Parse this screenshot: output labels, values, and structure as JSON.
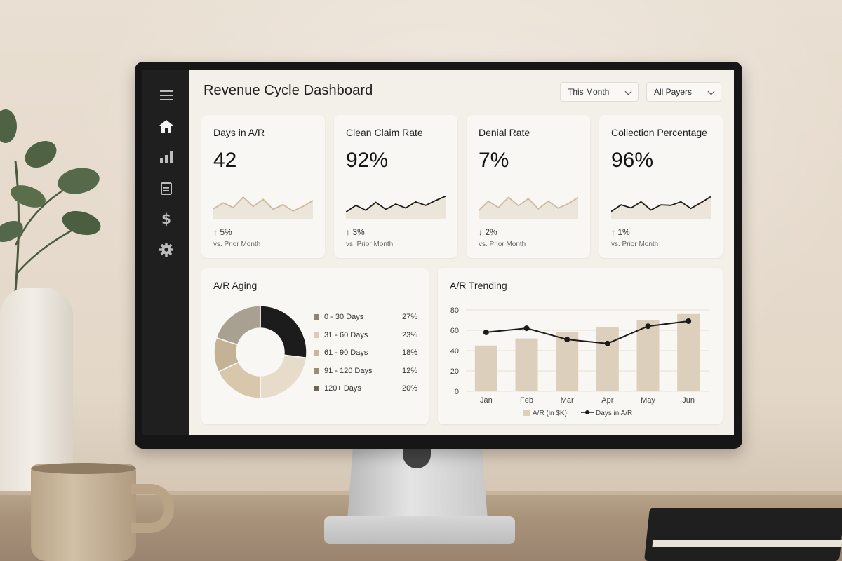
{
  "app": {
    "title": "Revenue Cycle Dashboard"
  },
  "filters": {
    "period": "This Month",
    "payers": "All Payers"
  },
  "sidebar": {
    "items": [
      {
        "icon": "menu-icon"
      },
      {
        "icon": "home-icon",
        "active": true
      },
      {
        "icon": "bar-chart-icon"
      },
      {
        "icon": "clipboard-icon"
      },
      {
        "icon": "dollar-icon"
      },
      {
        "icon": "gear-icon"
      }
    ]
  },
  "kpis": [
    {
      "label": "Days in A/R",
      "value": "42",
      "change": "5%",
      "direction": "up",
      "subtext": "vs. Prior Month",
      "spark_color": "#cdb99e",
      "spark": [
        4,
        5,
        4.2,
        6,
        4.4,
        5.6,
        3.9,
        4.7,
        3.6,
        4.4,
        5.4
      ]
    },
    {
      "label": "Clean Claim Rate",
      "value": "92%",
      "change": "3%",
      "direction": "up",
      "subtext": "vs. Prior Month",
      "spark_color": "#1b1b1b",
      "spark": [
        3,
        4.5,
        3.4,
        5.2,
        3.6,
        4.8,
        3.9,
        5.3,
        4.5,
        5.6,
        6.6
      ]
    },
    {
      "label": "Denial Rate",
      "value": "7%",
      "change": "2%",
      "direction": "down",
      "subtext": "vs. Prior Month",
      "spark_color": "#cdb99e",
      "spark": [
        3.5,
        5,
        4,
        5.6,
        4.3,
        5.4,
        3.8,
        5,
        3.9,
        4.6,
        5.6
      ]
    },
    {
      "label": "Collection Percentage",
      "value": "96%",
      "change": "1%",
      "direction": "up",
      "subtext": "vs. Prior Month",
      "spark_color": "#1b1b1b",
      "spark": [
        3.3,
        4.6,
        4,
        5.2,
        3.6,
        4.6,
        4.5,
        5.2,
        3.9,
        5,
        6.2
      ]
    }
  ],
  "aging": {
    "title": "A/R Aging",
    "rows": [
      {
        "label": "0 - 30 Days",
        "pct": "27%",
        "value": 27,
        "color": "#1c1c1c"
      },
      {
        "label": "31 - 60 Days",
        "pct": "23%",
        "value": 23,
        "color": "#e7dcca"
      },
      {
        "label": "61 - 90 Days",
        "pct": "18%",
        "value": 18,
        "color": "#d8c7ad"
      },
      {
        "label": "91 - 120 Days",
        "pct": "12%",
        "value": 12,
        "color": "#c3b294"
      },
      {
        "label": "120+ Days",
        "pct": "20%",
        "value": 20,
        "color": "#a8a090"
      }
    ]
  },
  "chart_data": {
    "type": "bar",
    "title": "A/R Trending",
    "categories": [
      "Jan",
      "Feb",
      "Mar",
      "Apr",
      "May",
      "Jun"
    ],
    "series": [
      {
        "name": "A/R (in $K)",
        "type": "bar",
        "values": [
          45,
          52,
          58,
          63,
          70,
          76
        ],
        "color": "#dccfbc"
      },
      {
        "name": "Days in A/R",
        "type": "line",
        "values": [
          58,
          62,
          51,
          47,
          64,
          69
        ],
        "color": "#1b1b1b"
      }
    ],
    "ylim": [
      0,
      80
    ],
    "yticks": [
      0,
      20,
      40,
      60,
      80
    ],
    "grid": true,
    "legend": "bottom"
  }
}
